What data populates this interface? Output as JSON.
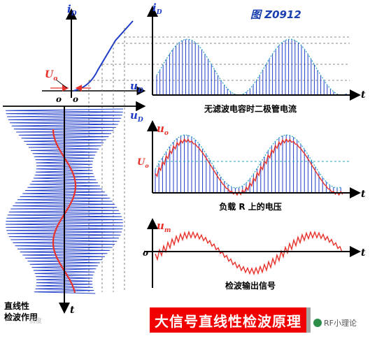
{
  "figure_id": "图 Z0912",
  "top_left": {
    "axis_y": "i",
    "axis_y_sub": "D",
    "axis_x": "u",
    "axis_x_sub": "D",
    "origin_left": "o",
    "origin_right": "o",
    "threshold_label": "U",
    "threshold_sub": "o"
  },
  "panel_current": {
    "axis_y": "i",
    "axis_y_sub": "D",
    "axis_x": "t",
    "caption": "无滤波电容时二极管电流"
  },
  "panel_voltage": {
    "axis_y": "u",
    "axis_y_sub": "o",
    "level_label": "U",
    "level_sub": "o",
    "axis_x": "t",
    "caption": "负载 R 上的电压"
  },
  "panel_output": {
    "axis_y": "u",
    "axis_y_sub": "m",
    "origin": "o",
    "axis_x": "t",
    "caption": "检波输出信号"
  },
  "left_column": {
    "axis_x": "u",
    "axis_x_sub": "D",
    "origin": "o",
    "axis_t": "t",
    "label_line1": "直线性",
    "label_line2": "检波作用"
  },
  "banner": "大信号直线性检波原理",
  "watermark": "RF小理论",
  "watermark_small": "百度",
  "colors": {
    "blue": "#1f3cc8",
    "red": "#e8312a",
    "envelope": "#2aa6c2",
    "banner_bg": "#f00000",
    "title_blue": "#1a3fb0"
  }
}
